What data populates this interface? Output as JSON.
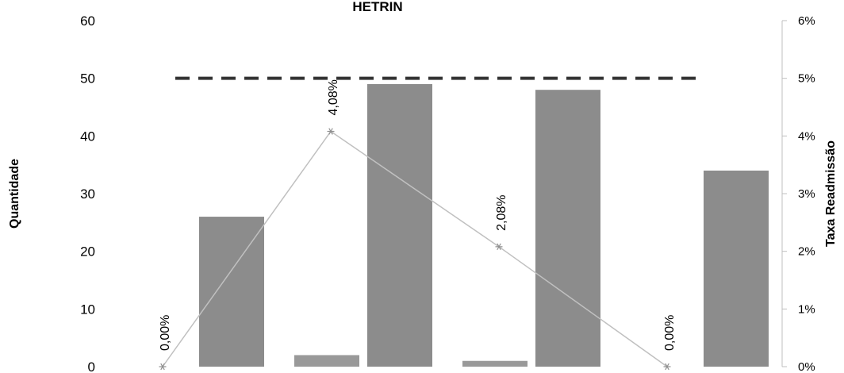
{
  "chart_data": {
    "type": "bar",
    "title": "HETRIN",
    "ylabel": "Quantidade",
    "y2label": "Taxa Readmissão",
    "ylim": [
      0,
      60
    ],
    "y2lim": [
      0,
      6
    ],
    "yticks": [
      "0",
      "10",
      "20",
      "30",
      "40",
      "50",
      "60"
    ],
    "y2ticks": [
      "0%",
      "1%",
      "2%",
      "3%",
      "4%",
      "5%",
      "6%"
    ],
    "categories": [
      "",
      "",
      "",
      ""
    ],
    "series": [
      {
        "type": "bar",
        "axis": "left",
        "color": "#999999",
        "values": [
          0,
          2,
          1,
          0
        ]
      },
      {
        "type": "bar",
        "axis": "left",
        "color": "#8c8c8c",
        "values": [
          26,
          49,
          48,
          34
        ]
      },
      {
        "type": "line",
        "axis": "right",
        "color": "#c0c0c0",
        "marker": "asterisk",
        "values": [
          0.0,
          4.08,
          2.08,
          0.0
        ],
        "labels": [
          "0,00%",
          "4,08%",
          "2,08%",
          "0,00%"
        ]
      },
      {
        "type": "line",
        "axis": "right",
        "style": "dashed",
        "color": "#333333",
        "values": [
          5,
          5,
          5,
          5
        ]
      }
    ],
    "grid": false,
    "legend": "none"
  }
}
